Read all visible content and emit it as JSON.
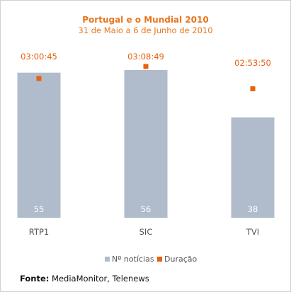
{
  "chart_data": {
    "type": "bar",
    "title": "Portugal e o Mundial 2010",
    "subtitle": "31 de Maio a 6 de Junho de 2010",
    "categories": [
      "RTP1",
      "SIC",
      "TVI"
    ],
    "series": [
      {
        "name": "Nº notícias",
        "type": "bar",
        "values": [
          55,
          56,
          38
        ],
        "value_labels": [
          "55",
          "56",
          "38"
        ],
        "color": "#b0bccb"
      },
      {
        "name": "Duração",
        "type": "point",
        "values": [
          "03:00:45",
          "03:08:49",
          "02:53:50"
        ],
        "value_seconds": [
          10845,
          11329,
          10430
        ],
        "color": "#e8610f"
      }
    ],
    "legend_position": "bottom",
    "grid": false
  },
  "source": {
    "label": "Fonte:",
    "text": "MediaMonitor, Telenews"
  },
  "colors": {
    "title": "#e8761f",
    "bar": "#b0bccb",
    "marker": "#e8610f",
    "axis_text": "#555555"
  }
}
